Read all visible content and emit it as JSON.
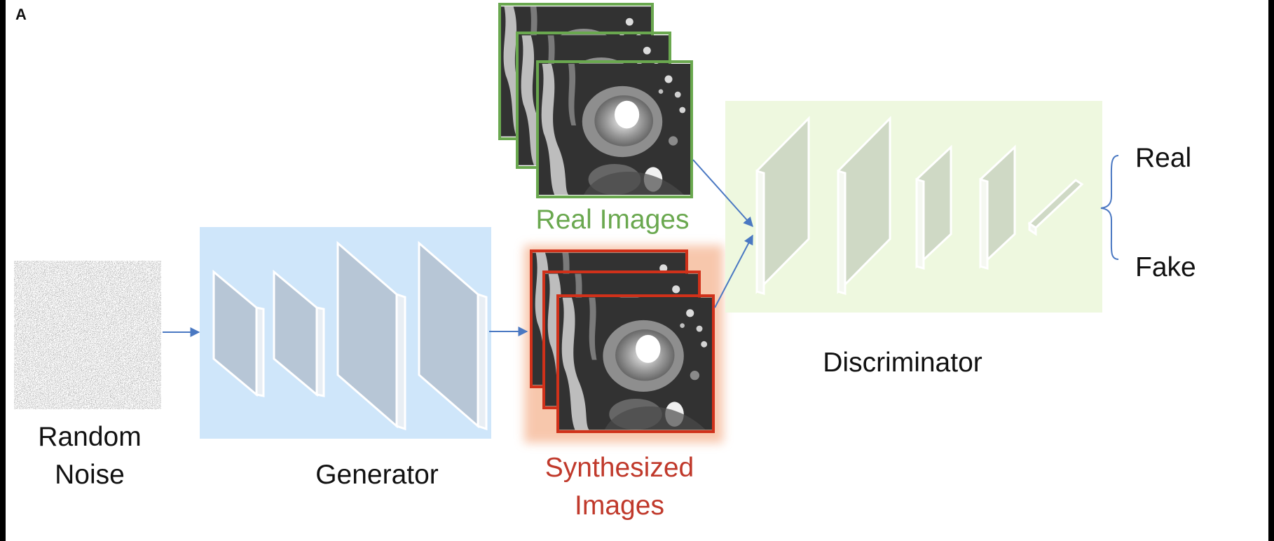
{
  "figure": {
    "panel_letter": "A",
    "inputs": {
      "noise_label": [
        "Random",
        "Noise"
      ]
    },
    "generator": {
      "label": "Generator",
      "layers": 4
    },
    "real_images": {
      "label": "Real Images",
      "stack_count": 3,
      "border_color": "#6aa84f"
    },
    "synthesized_images": {
      "label": [
        "Synthesized",
        "Images"
      ],
      "stack_count": 3,
      "border_color": "#d0311a"
    },
    "discriminator": {
      "label": "Discriminator",
      "layers": 5
    },
    "outputs": {
      "real": "Real",
      "fake": "Fake"
    },
    "colors": {
      "generator_bg": "#cfe6fa",
      "discriminator_bg": "#eef8df",
      "arrow": "#4a78c2"
    }
  }
}
